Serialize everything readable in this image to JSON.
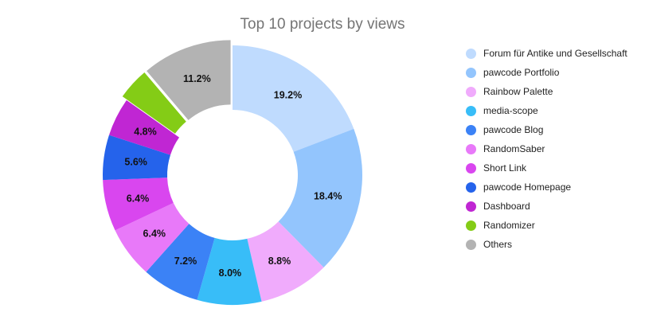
{
  "chart_data": {
    "type": "pie",
    "variant": "donut",
    "title": "Top 10 projects by views",
    "categories": [
      "Forum für Antike und Gesellschaft",
      "pawcode Portfolio",
      "Rainbow Palette",
      "media-scope",
      "pawcode Blog",
      "RandomSaber",
      "Short Link",
      "pawcode Homepage",
      "Dashboard",
      "Randomizer",
      "Others"
    ],
    "values": [
      19.2,
      18.4,
      8.8,
      8.0,
      7.2,
      6.4,
      6.4,
      5.6,
      4.8,
      4.0,
      11.2
    ],
    "value_labels": [
      "19.2%",
      "18.4%",
      "8.8%",
      "8.0%",
      "7.2%",
      "6.4%",
      "6.4%",
      "5.6%",
      "4.8%",
      "",
      "11.2%"
    ],
    "colors": [
      "#bfdbfe",
      "#93c5fd",
      "#f0abfc",
      "#38bdf8",
      "#3b82f6",
      "#e879f9",
      "#d946ef",
      "#2563eb",
      "#c026d3",
      "#84cc16",
      "#b3b3b3"
    ],
    "exploded": [
      false,
      false,
      false,
      false,
      false,
      false,
      false,
      false,
      false,
      true,
      true
    ],
    "legend_position": "right",
    "start_angle": "12 o'clock, clockwise"
  },
  "title": "Top 10 projects by views",
  "legend": [
    {
      "label": "Forum für Antike und Gesellschaft",
      "color": "#bfdbfe"
    },
    {
      "label": "pawcode Portfolio",
      "color": "#93c5fd"
    },
    {
      "label": "Rainbow Palette",
      "color": "#f0abfc"
    },
    {
      "label": "media-scope",
      "color": "#38bdf8"
    },
    {
      "label": "pawcode Blog",
      "color": "#3b82f6"
    },
    {
      "label": "RandomSaber",
      "color": "#e879f9"
    },
    {
      "label": "Short Link",
      "color": "#d946ef"
    },
    {
      "label": "pawcode Homepage",
      "color": "#2563eb"
    },
    {
      "label": "Dashboard",
      "color": "#c026d3"
    },
    {
      "label": "Randomizer",
      "color": "#84cc16"
    },
    {
      "label": "Others",
      "color": "#b3b3b3"
    }
  ]
}
